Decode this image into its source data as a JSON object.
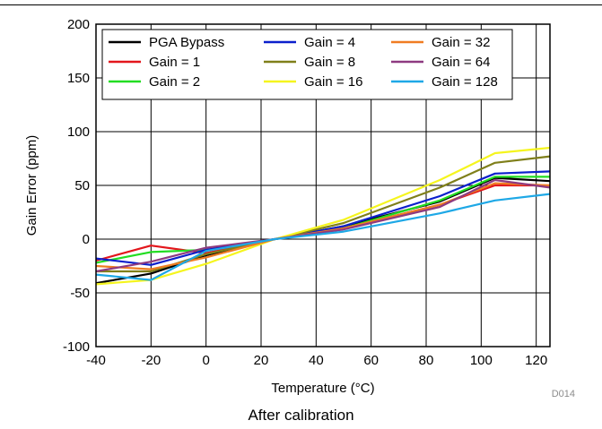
{
  "caption": "After calibration",
  "chart_data": {
    "type": "line",
    "title": "",
    "xlabel": "Temperature (°C)",
    "ylabel": "Gain Error (ppm)",
    "figure_id": "D014",
    "xlim": [
      -40,
      125
    ],
    "ylim": [
      -100,
      200
    ],
    "xticks": [
      -40,
      -20,
      0,
      20,
      40,
      60,
      80,
      100,
      120
    ],
    "yticks": [
      -100,
      -50,
      0,
      50,
      100,
      150,
      200
    ],
    "grid": true,
    "legend_position": "top-left",
    "series": [
      {
        "name": "PGA Bypass",
        "color": "#000000",
        "x": [
          -40,
          -20,
          0,
          25,
          50,
          85,
          105,
          125
        ],
        "y": [
          -41,
          -32,
          -15,
          0,
          12,
          35,
          57,
          54
        ]
      },
      {
        "name": "Gain = 1",
        "color": "#e3161c",
        "x": [
          -40,
          -20,
          0,
          25,
          50,
          85,
          105,
          125
        ],
        "y": [
          -20,
          -6,
          -13,
          0,
          10,
          32,
          50,
          50
        ]
      },
      {
        "name": "Gain = 2",
        "color": "#22dd22",
        "x": [
          -40,
          -20,
          0,
          25,
          50,
          85,
          105,
          125
        ],
        "y": [
          -22,
          -12,
          -10,
          0,
          10,
          36,
          58,
          58
        ]
      },
      {
        "name": "Gain = 4",
        "color": "#0b1fcc",
        "x": [
          -40,
          -20,
          0,
          25,
          50,
          85,
          105,
          125
        ],
        "y": [
          -18,
          -24,
          -10,
          0,
          12,
          40,
          61,
          63
        ]
      },
      {
        "name": "Gain = 8",
        "color": "#7f7f1a",
        "x": [
          -40,
          -20,
          0,
          25,
          50,
          85,
          105,
          125
        ],
        "y": [
          -30,
          -30,
          -14,
          0,
          15,
          48,
          71,
          77
        ]
      },
      {
        "name": "Gain = 16",
        "color": "#f5f51e",
        "x": [
          -40,
          -20,
          0,
          25,
          50,
          85,
          105,
          125
        ],
        "y": [
          -42,
          -38,
          -23,
          0,
          18,
          55,
          80,
          85
        ]
      },
      {
        "name": "Gain = 32",
        "color": "#f07c22",
        "x": [
          -40,
          -20,
          0,
          25,
          50,
          85,
          105,
          125
        ],
        "y": [
          -25,
          -28,
          -17,
          0,
          10,
          32,
          52,
          50
        ]
      },
      {
        "name": "Gain = 64",
        "color": "#8e3a80",
        "x": [
          -40,
          -20,
          0,
          25,
          50,
          85,
          105,
          125
        ],
        "y": [
          -30,
          -21,
          -8,
          0,
          9,
          30,
          55,
          48
        ]
      },
      {
        "name": "Gain = 128",
        "color": "#1ea8e6",
        "x": [
          -40,
          -20,
          0,
          25,
          50,
          85,
          105,
          125
        ],
        "y": [
          -33,
          -38,
          -11,
          0,
          7,
          24,
          36,
          42
        ]
      }
    ]
  }
}
